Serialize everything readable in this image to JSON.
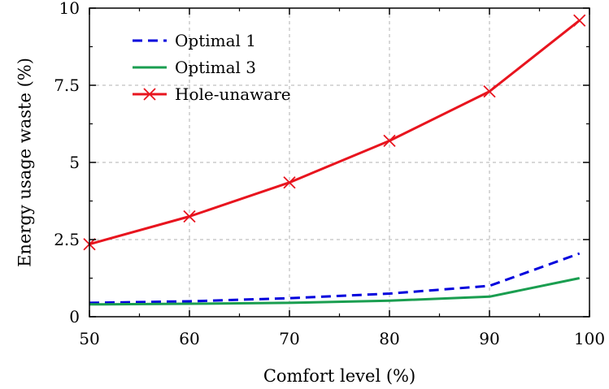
{
  "chart_data": {
    "type": "line",
    "title": "",
    "xlabel": "Comfort level (%)",
    "ylabel": "Energy usage waste (%)",
    "xlim": [
      50,
      100
    ],
    "ylim": [
      0,
      10
    ],
    "x_ticks": [
      50,
      60,
      70,
      80,
      90,
      100
    ],
    "x_tick_labels": [
      "50",
      "60",
      "70",
      "80",
      "90",
      "100"
    ],
    "y_ticks": [
      0,
      2.5,
      5,
      7.5,
      10
    ],
    "y_tick_labels": [
      "0",
      "2.5",
      "5",
      "7.5",
      "10"
    ],
    "grid": true,
    "legend_position": "top-left",
    "series": [
      {
        "name": "Optimal 1",
        "style": "dashed",
        "color": "#0000dd",
        "marker": "none",
        "x": [
          50,
          60,
          70,
          80,
          90,
          99
        ],
        "values": [
          0.45,
          0.5,
          0.6,
          0.75,
          1.0,
          2.05
        ]
      },
      {
        "name": "Optimal 3",
        "style": "solid",
        "color": "#1a9e50",
        "marker": "none",
        "x": [
          50,
          60,
          70,
          80,
          90,
          99
        ],
        "values": [
          0.4,
          0.42,
          0.45,
          0.52,
          0.65,
          1.25
        ]
      },
      {
        "name": "Hole-unaware",
        "style": "solid",
        "color": "#e8141e",
        "marker": "x",
        "x": [
          50,
          60,
          70,
          80,
          90,
          99
        ],
        "values": [
          2.35,
          3.25,
          4.35,
          5.7,
          7.3,
          9.6
        ]
      }
    ]
  }
}
